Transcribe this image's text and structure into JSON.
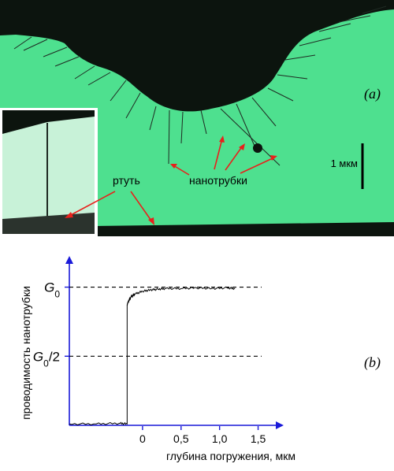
{
  "panel_a": {
    "label": "(a)",
    "scale_bar_label": "1 мкм",
    "label_mercury": "ртуть",
    "label_nanotubes": "нанотрубки",
    "colors": {
      "background": "#4ee08f",
      "dark": "#0c140e",
      "arrow": "#e8211c"
    }
  },
  "panel_b": {
    "label": "(b)",
    "colors": {
      "axes": "#1a1ad9",
      "curve": "#000000"
    }
  },
  "chart_data": {
    "type": "line",
    "xlabel": "глубина погружения, мкм",
    "ylabel": "проводимость нанотрубки",
    "x_ticks": [
      "0",
      "0,5",
      "1,0",
      "1,5"
    ],
    "x_tick_values": [
      0,
      0.5,
      1.0,
      1.5
    ],
    "y_levels": [
      {
        "label_main": "G",
        "label_sub": "0",
        "label_suffix": "",
        "value": 1.0
      },
      {
        "label_main": "G",
        "label_sub": "0",
        "label_suffix": "/2",
        "value": 0.5
      }
    ],
    "xlim": [
      -0.95,
      1.75
    ],
    "ylim": [
      0,
      1.18
    ],
    "series": [
      {
        "x": [
          -0.95,
          -0.6,
          -0.3,
          -0.2,
          -0.2,
          -0.19,
          -0.15,
          -0.1,
          0.0,
          0.1,
          0.2,
          0.3,
          0.5,
          0.7,
          0.9,
          1.1,
          1.2
        ],
        "y": [
          0.01,
          0.01,
          0.015,
          0.01,
          0.87,
          0.89,
          0.93,
          0.95,
          0.97,
          0.98,
          0.985,
          0.99,
          0.99,
          0.995,
          0.99,
          0.995,
          0.99
        ]
      }
    ]
  }
}
